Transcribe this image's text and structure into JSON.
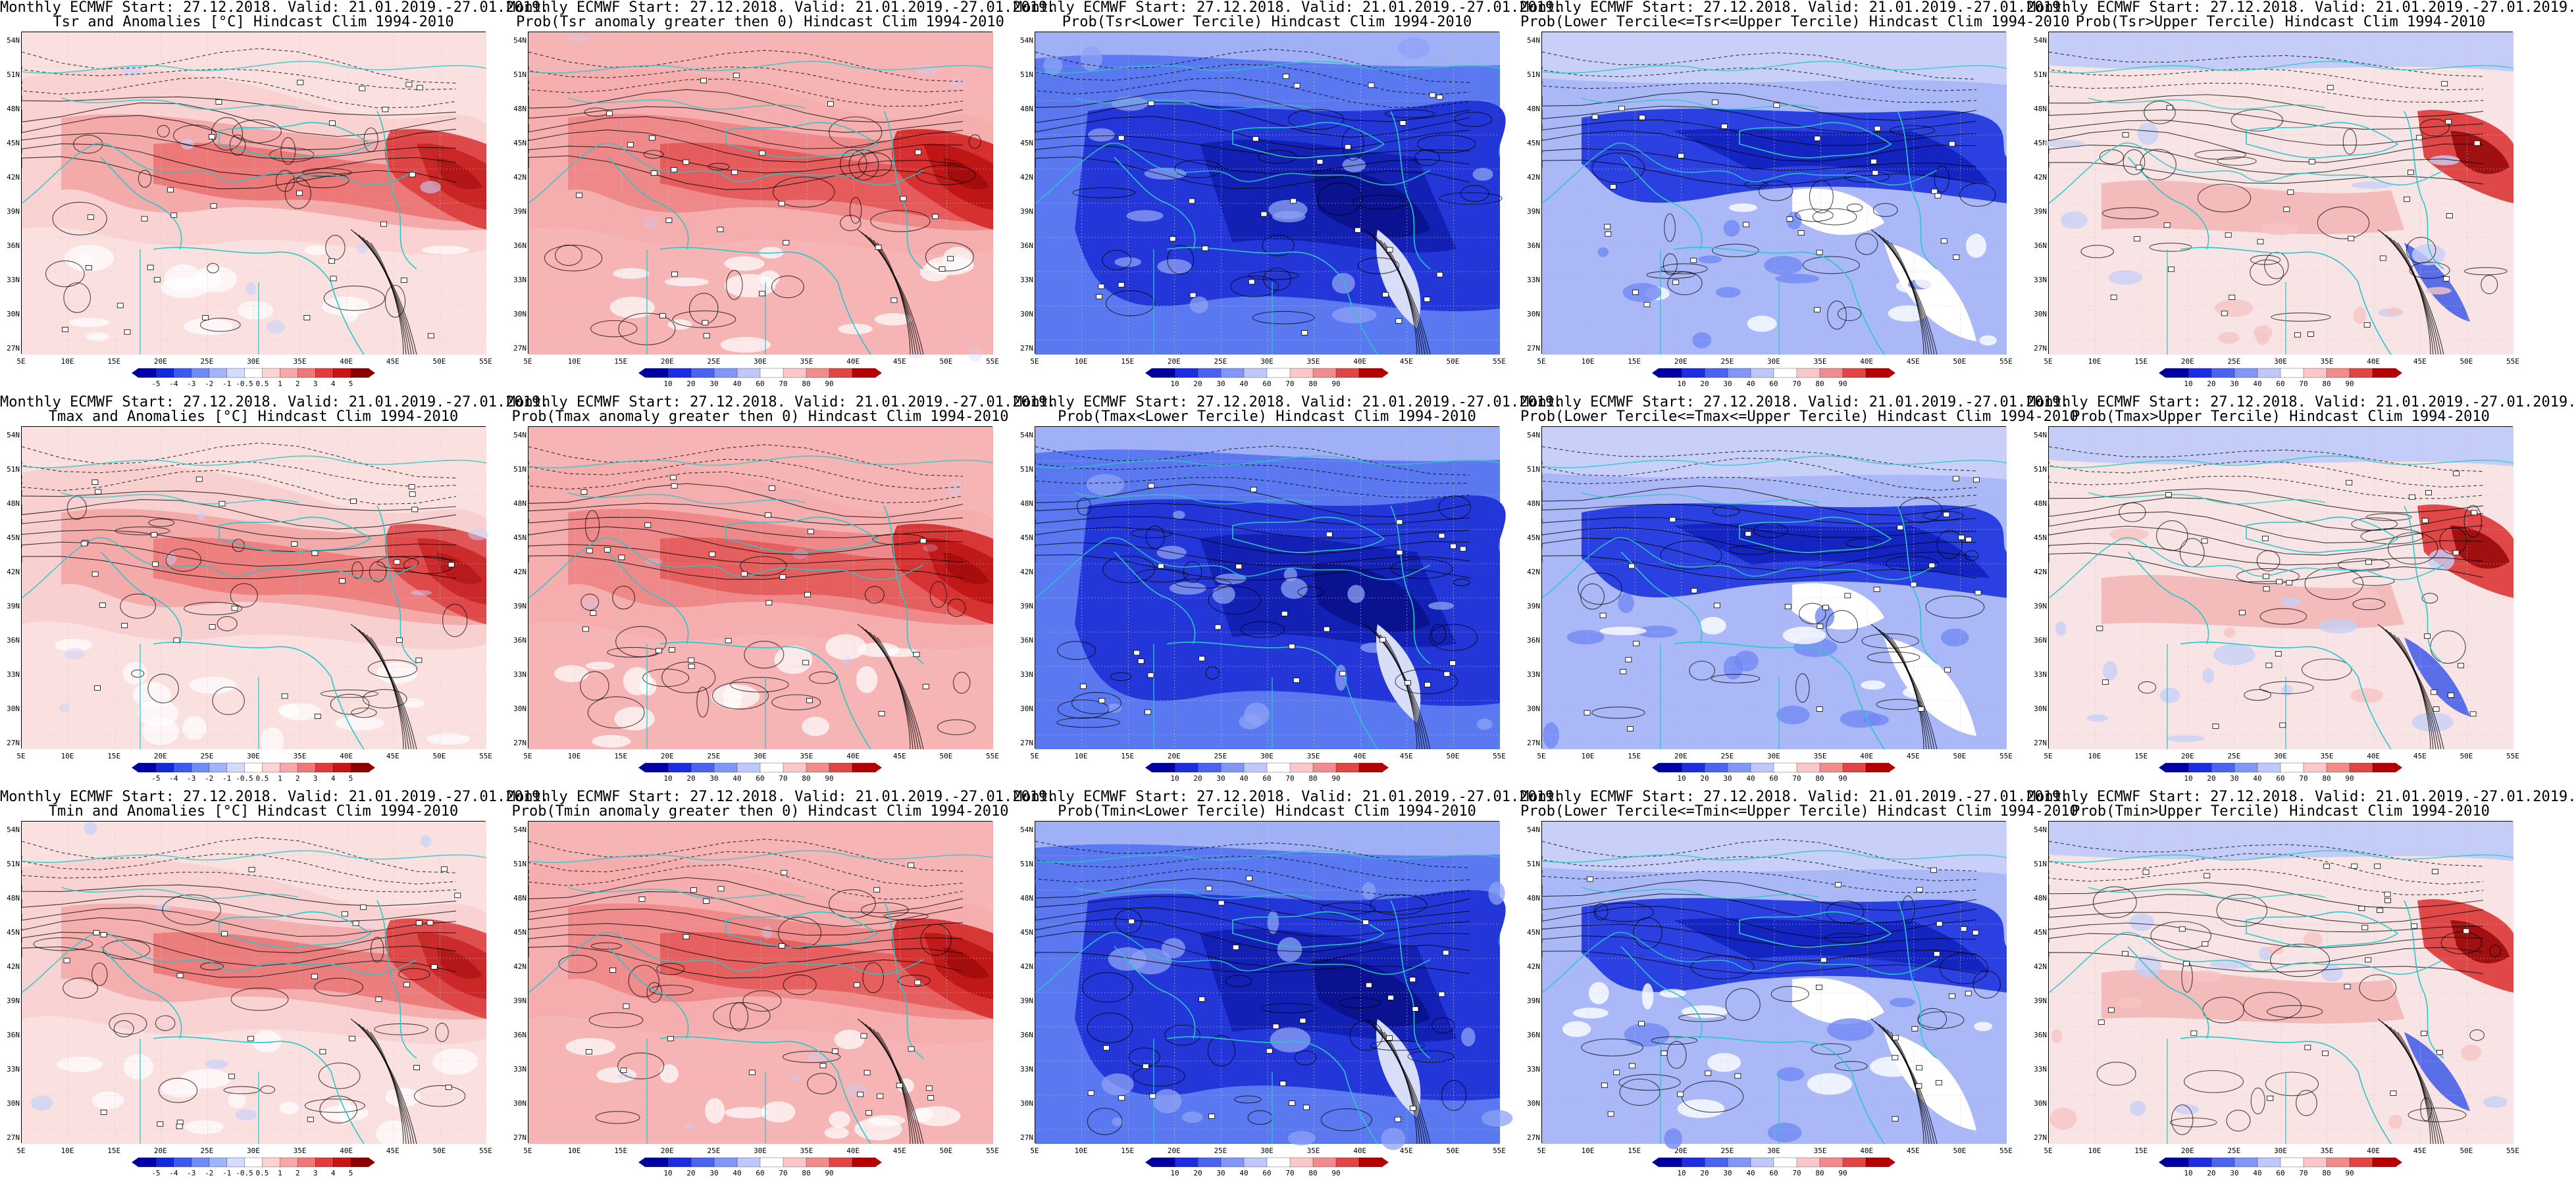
{
  "figure": {
    "panels": [
      {
        "row": 0,
        "col": 0,
        "kind": "anomaly",
        "line1": "Monthly ECMWF Start: 27.12.2018. Valid: 21.01.2019.-27.01.2019.",
        "line2": "Tsr and Anomalies [°C] Hindcast Clim 1994-2010",
        "hot": [
          0.45,
          0.72,
          0.85,
          0.95,
          0.7,
          0.4
        ],
        "ncold": 0.06
      },
      {
        "row": 0,
        "col": 1,
        "kind": "probpos",
        "line1": "Monthly ECMWF Start: 27.12.2018. Valid: 21.01.2019.-27.01.2019.",
        "line2": "Prob(Tsr anomaly greater then 0) Hindcast Clim 1994-2010",
        "hot": [
          0.55,
          0.8,
          0.9,
          1.0,
          0.8,
          0.5
        ],
        "ncold": 0.03
      },
      {
        "row": 0,
        "col": 2,
        "kind": "lower",
        "line1": "Monthly ECMWF Start: 27.12.2018. Valid: 21.01.2019.-27.01.2019.",
        "line2": "Prob(Tsr<Lower Tercile) Hindcast Clim 1994-2010"
      },
      {
        "row": 0,
        "col": 3,
        "kind": "middle",
        "line1": "Monthly ECMWF Start: 27.12.2018. Valid: 21.01.2019.-27.01.2019.",
        "line2": "Prob(Lower Tercile<=Tsr<=Upper Tercile) Hindcast Clim 1994-2010"
      },
      {
        "row": 0,
        "col": 4,
        "kind": "upper",
        "line1": "Monthly ECMWF Start: 27.12.2018. Valid: 21.01.2019.-27.01.2019.",
        "line2": "Prob(Tsr>Upper Tercile) Hindcast Clim 1994-2010"
      },
      {
        "row": 1,
        "col": 0,
        "kind": "anomaly",
        "line1": "Monthly ECMWF Start: 27.12.2018. Valid: 21.01.2019.-27.01.2019.",
        "line2": "Tmax and Anomalies [°C] Hindcast Clim 1994-2010",
        "hot": [
          0.5,
          0.7,
          0.75,
          0.85,
          0.65,
          0.35
        ],
        "ncold": 0.05
      },
      {
        "row": 1,
        "col": 1,
        "kind": "probpos",
        "line1": "Monthly ECMWF Start: 27.12.2018. Valid: 21.01.2019.-27.01.2019.",
        "line2": "Prob(Tmax anomaly greater then 0) Hindcast Clim 1994-2010",
        "hot": [
          0.6,
          0.8,
          0.85,
          0.95,
          0.75,
          0.45
        ],
        "ncold": 0.03
      },
      {
        "row": 1,
        "col": 2,
        "kind": "lower",
        "line1": "Monthly ECMWF Start: 27.12.2018. Valid: 21.01.2019.-27.01.2019.",
        "line2": "Prob(Tmax<Lower Tercile) Hindcast Clim 1994-2010"
      },
      {
        "row": 1,
        "col": 3,
        "kind": "middle",
        "line1": "Monthly ECMWF Start: 27.12.2018. Valid: 21.01.2019.-27.01.2019.",
        "line2": "Prob(Lower Tercile<=Tmax<=Upper Tercile) Hindcast Clim 1994-2010"
      },
      {
        "row": 1,
        "col": 4,
        "kind": "upper",
        "line1": "Monthly ECMWF Start: 27.12.2018. Valid: 21.01.2019.-27.01.2019.",
        "line2": "Prob(Tmax>Upper Tercile) Hindcast Clim 1994-2010"
      },
      {
        "row": 2,
        "col": 0,
        "kind": "anomaly",
        "line1": "Monthly ECMWF Start: 27.12.2018. Valid: 21.01.2019.-27.01.2019.",
        "line2": "Tmin and Anomalies [°C] Hindcast Clim 1994-2010",
        "hot": [
          0.4,
          0.65,
          0.8,
          0.9,
          0.65,
          0.4
        ],
        "ncold": 0.07
      },
      {
        "row": 2,
        "col": 1,
        "kind": "probpos",
        "line1": "Monthly ECMWF Start: 27.12.2018. Valid: 21.01.2019.-27.01.2019.",
        "line2": "Prob(Tmin anomaly greater then 0) Hindcast Clim 1994-2010",
        "hot": [
          0.55,
          0.75,
          0.85,
          0.95,
          0.75,
          0.5
        ],
        "ncold": 0.04
      },
      {
        "row": 2,
        "col": 2,
        "kind": "lower",
        "line1": "Monthly ECMWF Start: 27.12.2018. Valid: 21.01.2019.-27.01.2019.",
        "line2": "Prob(Tmin<Lower Tercile) Hindcast Clim 1994-2010"
      },
      {
        "row": 2,
        "col": 3,
        "kind": "middle",
        "line1": "Monthly ECMWF Start: 27.12.2018. Valid: 21.01.2019.-27.01.2019.",
        "line2": "Prob(Lower Tercile<=Tmin<=Upper Tercile) Hindcast Clim 1994-2010"
      },
      {
        "row": 2,
        "col": 4,
        "kind": "upper",
        "line1": "Monthly ECMWF Start: 27.12.2018. Valid: 21.01.2019.-27.01.2019.",
        "line2": "Prob(Tmin>Upper Tercile) Hindcast Clim 1994-2010"
      }
    ],
    "lat_labels": [
      "54N",
      "51N",
      "48N",
      "45N",
      "42N",
      "39N",
      "36N",
      "33N",
      "30N",
      "27N"
    ],
    "lon_labels": [
      "5E",
      "10E",
      "15E",
      "20E",
      "25E",
      "30E",
      "35E",
      "40E",
      "45E",
      "50E",
      "55E"
    ],
    "anomaly_colorbar": {
      "labels": [
        "-5",
        "-4",
        "-3",
        "-2",
        "-1",
        "-0.5",
        "0.5",
        "1",
        "2",
        "3",
        "4",
        "5"
      ],
      "colors": [
        "#0000a8",
        "#1428dc",
        "#3c5af0",
        "#6e8cf5",
        "#a0b4fa",
        "#d2dcfc",
        "#ffffff",
        "#fcd4d4",
        "#f8a8a8",
        "#f07878",
        "#e03c3c",
        "#c81414",
        "#8c0000"
      ]
    },
    "prob_colorbar": {
      "labels": [
        "10",
        "20",
        "30",
        "40",
        "60",
        "70",
        "80",
        "90"
      ],
      "colors": [
        "#0000a0",
        "#1e2de0",
        "#4b64f0",
        "#8296f5",
        "#bec8fa",
        "#ffffff",
        "#fac8c8",
        "#f08c8c",
        "#e04646",
        "#b40000"
      ]
    },
    "colors": {
      "coast": "#28c8c8",
      "contour": "#000000",
      "frame": "#000000"
    }
  }
}
